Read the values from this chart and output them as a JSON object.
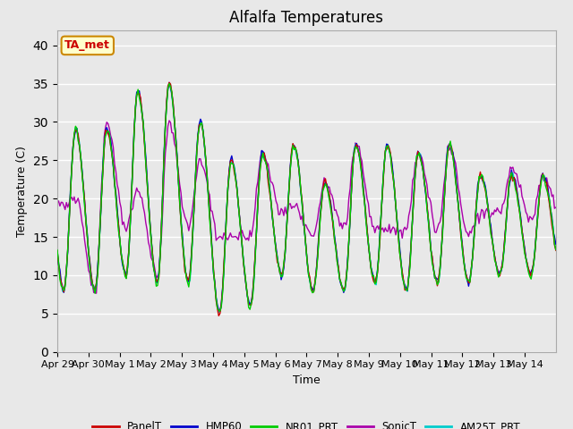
{
  "title": "Alfalfa Temperatures",
  "xlabel": "Time",
  "ylabel": "Temperature (C)",
  "ylim": [
    0,
    42
  ],
  "yticks": [
    0,
    5,
    10,
    15,
    20,
    25,
    30,
    35,
    40
  ],
  "background_color": "#e8e8e8",
  "plot_bg_color": "#e8e8e8",
  "annotation_text": "TA_met",
  "annotation_color": "#cc0000",
  "annotation_bg": "#ffffcc",
  "annotation_border": "#cc8800",
  "series_colors": {
    "PanelT": "#cc0000",
    "HMP60": "#0000cc",
    "NR01_PRT": "#00cc00",
    "SonicT": "#aa00aa",
    "AM25T_PRT": "#00cccc"
  },
  "line_width": 1.0,
  "title_fontsize": 12,
  "tick_fontsize": 8,
  "n_days": 16,
  "hours_per_day": 24,
  "peak_temps": [
    29,
    29,
    34,
    35,
    30,
    25,
    26,
    27,
    22,
    27,
    27,
    26,
    27,
    23,
    23,
    23
  ],
  "min_temps": [
    8,
    8,
    10,
    9,
    9,
    5,
    6,
    10,
    8,
    8,
    9,
    8,
    9,
    9,
    10,
    10
  ],
  "sonic_peak": [
    20,
    30,
    21,
    30,
    25,
    15,
    26,
    19,
    22,
    27,
    16,
    26,
    27,
    18,
    24,
    23
  ],
  "sonic_min": [
    19,
    8,
    16,
    10,
    16,
    15,
    15,
    18,
    15,
    16,
    16,
    16,
    16,
    15,
    18,
    17
  ],
  "tick_labels": [
    "Apr 29",
    "Apr 30",
    "May 1",
    "May 2",
    "May 3",
    "May 4",
    "May 5",
    "May 6",
    "May 7",
    "May 8",
    "May 9",
    "May 10",
    "May 11",
    "May 12",
    "May 13",
    "May 14"
  ]
}
